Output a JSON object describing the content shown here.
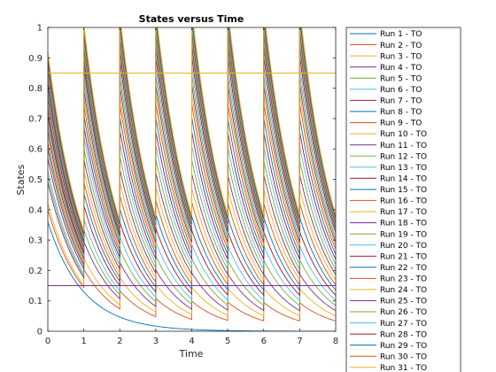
{
  "chart_data": {
    "type": "line",
    "title": "States versus Time",
    "xlabel": "Time",
    "ylabel": "States",
    "xlim": [
      0,
      8
    ],
    "ylim": [
      0,
      1
    ],
    "xticks": [
      "0",
      "1",
      "2",
      "3",
      "4",
      "5",
      "6",
      "7",
      "8"
    ],
    "yticks": [
      "0",
      "0.1",
      "0.2",
      "0.3",
      "0.4",
      "0.5",
      "0.6",
      "0.7",
      "0.8",
      "0.9",
      "1"
    ],
    "grid": false,
    "legend_position": "outside-right",
    "pulse_period": 1,
    "decay_rate": 1.02,
    "series": [
      {
        "name": "Run 1 - TO",
        "initial": 0.36,
        "pulse": 0
      },
      {
        "name": "Run 2 - TO",
        "initial": 0.4,
        "pulse": 0.06
      },
      {
        "name": "Run 3 - TO",
        "initial": 0.42,
        "pulse": 0.09
      },
      {
        "name": "Run 4 - TO",
        "initial": 0.49,
        "pulse": 0.12
      },
      {
        "name": "Run 5 - TO",
        "initial": 0.51,
        "pulse": 0.15
      },
      {
        "name": "Run 6 - TO",
        "initial": 0.53,
        "pulse": 0.18
      },
      {
        "name": "Run 7 - TO",
        "initial": 0.57,
        "pulse": 0.21
      },
      {
        "name": "Run 8 - TO",
        "initial": 0.6,
        "pulse": 0.24
      },
      {
        "name": "Run 9 - TO",
        "initial": 0.62,
        "pulse": 0.27
      },
      {
        "name": "Run 10 - TO",
        "initial": 0.64,
        "pulse": 0.3
      },
      {
        "name": "Run 11 - TO",
        "initial": 0.66,
        "pulse": 0.33
      },
      {
        "name": "Run 12 - TO",
        "initial": 0.68,
        "pulse": 0.36
      },
      {
        "name": "Run 13 - TO",
        "initial": 0.7,
        "pulse": 0.39
      },
      {
        "name": "Run 14 - TO",
        "initial": 0.71,
        "pulse": 0.42
      },
      {
        "name": "Run 15 - TO",
        "initial": 0.73,
        "pulse": 0.45
      },
      {
        "name": "Run 16 - TO",
        "initial": 0.74,
        "pulse": 0.48
      },
      {
        "name": "Run 17 - TO",
        "initial": 0.76,
        "pulse": 0.5
      },
      {
        "name": "Run 18 - TO",
        "initial": 0.77,
        "pulse": 0.52
      },
      {
        "name": "Run 19 - TO",
        "initial": 0.79,
        "pulse": 0.54
      },
      {
        "name": "Run 20 - TO",
        "initial": 0.8,
        "pulse": 0.56
      },
      {
        "name": "Run 21 - TO",
        "initial": 0.81,
        "pulse": 0.58
      },
      {
        "name": "Run 22 - TO",
        "initial": 0.82,
        "pulse": 0.6
      },
      {
        "name": "Run 23 - TO",
        "initial": 0.84,
        "pulse": 0.61
      },
      {
        "name": "Run 24 - TO",
        "initial": 0.85,
        "pulse": 0.62
      },
      {
        "name": "Run 25 - TO",
        "initial": 0.86,
        "pulse": 0.63
      },
      {
        "name": "Run 26 - TO",
        "initial": 0.87,
        "pulse": 0.64
      },
      {
        "name": "Run 27 - TO",
        "initial": 0.88,
        "pulse": 0.65
      },
      {
        "name": "Run 28 - TO",
        "initial": 0.89,
        "pulse": 0.66
      },
      {
        "name": "Run 29 - TO",
        "initial": 0.9,
        "pulse": 0.66
      },
      {
        "name": "Run 30 - TO",
        "initial": 0.91,
        "pulse": 0.67
      },
      {
        "name": "Run 31 - TO",
        "initial": 0.92,
        "pulse": 0.68
      }
    ],
    "reference_lines": [
      {
        "y": 0.85,
        "color": "#EDB120"
      },
      {
        "y": 0.15,
        "color": "#7E2F8E"
      }
    ],
    "colors": [
      "#0072BD",
      "#D95319",
      "#EDB120",
      "#7E2F8E",
      "#77AC30",
      "#4DBEEE",
      "#A2142F"
    ]
  }
}
